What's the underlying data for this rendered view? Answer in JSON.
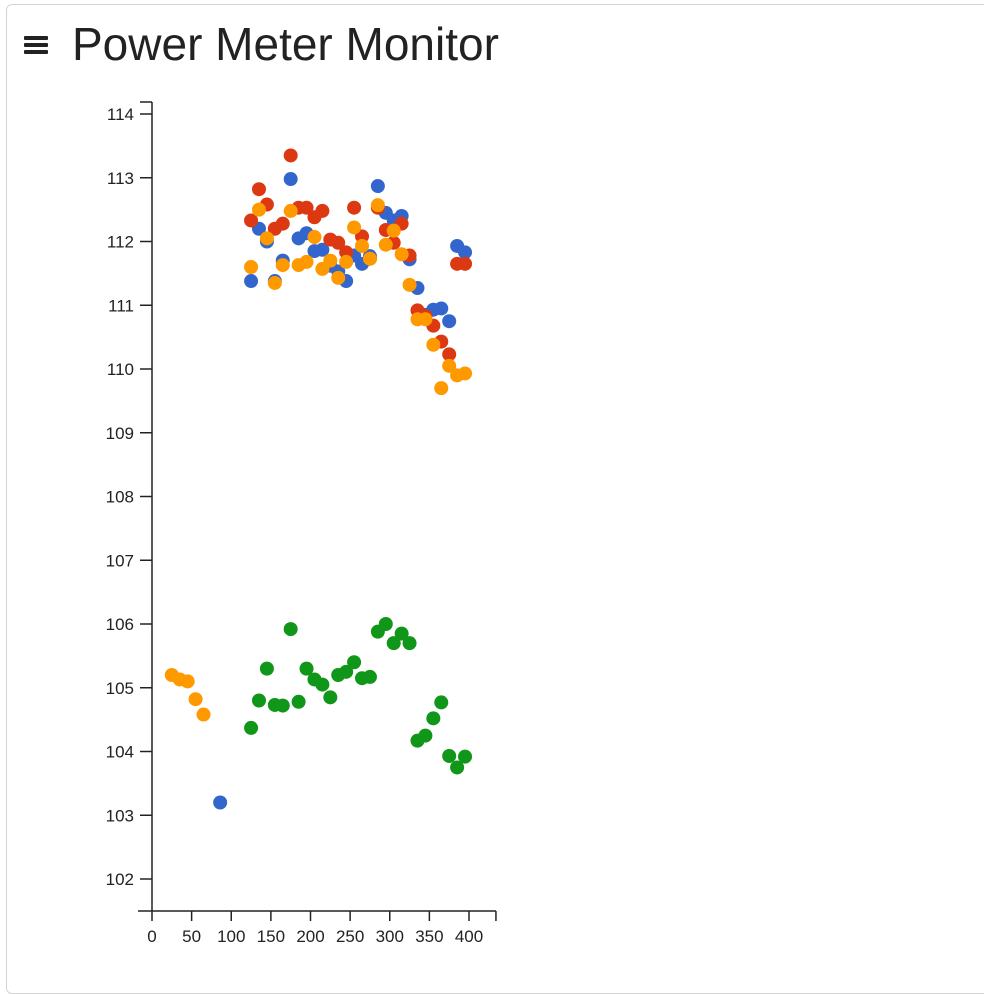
{
  "header": {
    "title": "Power Meter Monitor",
    "menu_icon": "hamburger-menu-icon"
  },
  "chart_data": {
    "type": "scatter",
    "title": "Power Meter Monitor",
    "xlabel": "",
    "ylabel": "",
    "xlim": [
      0,
      434
    ],
    "ylim": [
      101.5,
      114.2
    ],
    "x_ticks": [
      0,
      50,
      100,
      150,
      200,
      250,
      300,
      350,
      400
    ],
    "y_ticks": [
      102,
      103,
      104,
      105,
      106,
      107,
      108,
      109,
      110,
      111,
      112,
      113,
      114
    ],
    "grid": false,
    "legend": "none",
    "series": [
      {
        "color": "#3366cc",
        "points": [
          [
            86,
            103.2
          ],
          [
            125,
            111.38
          ],
          [
            135,
            112.2
          ],
          [
            145,
            112.0
          ],
          [
            155,
            111.38
          ],
          [
            165,
            111.7
          ],
          [
            175,
            112.98
          ],
          [
            185,
            112.05
          ],
          [
            195,
            112.13
          ],
          [
            205,
            111.85
          ],
          [
            215,
            111.87
          ],
          [
            225,
            111.62
          ],
          [
            235,
            111.53
          ],
          [
            245,
            111.38
          ],
          [
            255,
            111.78
          ],
          [
            265,
            111.65
          ],
          [
            275,
            111.77
          ],
          [
            285,
            112.87
          ],
          [
            295,
            112.45
          ],
          [
            305,
            112.33
          ],
          [
            315,
            112.4
          ],
          [
            325,
            111.72
          ],
          [
            335,
            111.27
          ],
          [
            345,
            110.85
          ],
          [
            355,
            110.93
          ],
          [
            365,
            110.95
          ],
          [
            375,
            110.75
          ],
          [
            385,
            111.93
          ],
          [
            395,
            111.83
          ]
        ]
      },
      {
        "color": "#dc3912",
        "points": [
          [
            125,
            112.33
          ],
          [
            135,
            112.82
          ],
          [
            145,
            112.58
          ],
          [
            155,
            112.2
          ],
          [
            165,
            112.28
          ],
          [
            175,
            113.35
          ],
          [
            185,
            112.53
          ],
          [
            195,
            112.53
          ],
          [
            205,
            112.38
          ],
          [
            215,
            112.48
          ],
          [
            225,
            112.03
          ],
          [
            235,
            111.98
          ],
          [
            245,
            111.83
          ],
          [
            255,
            112.53
          ],
          [
            265,
            112.08
          ],
          [
            275,
            111.73
          ],
          [
            285,
            112.53
          ],
          [
            295,
            112.18
          ],
          [
            305,
            111.98
          ],
          [
            315,
            112.28
          ],
          [
            325,
            111.78
          ],
          [
            335,
            110.92
          ],
          [
            345,
            110.83
          ],
          [
            355,
            110.68
          ],
          [
            365,
            110.43
          ],
          [
            375,
            110.23
          ],
          [
            385,
            111.65
          ],
          [
            395,
            111.65
          ]
        ]
      },
      {
        "color": "#ff9900",
        "points": [
          [
            25,
            105.2
          ],
          [
            35,
            105.13
          ],
          [
            45,
            105.1
          ],
          [
            55,
            104.82
          ],
          [
            65,
            104.58
          ],
          [
            125,
            111.6
          ],
          [
            135,
            112.5
          ],
          [
            145,
            112.05
          ],
          [
            155,
            111.35
          ],
          [
            165,
            111.63
          ],
          [
            175,
            112.48
          ],
          [
            185,
            111.63
          ],
          [
            195,
            111.68
          ],
          [
            205,
            112.07
          ],
          [
            215,
            111.57
          ],
          [
            225,
            111.7
          ],
          [
            235,
            111.43
          ],
          [
            245,
            111.68
          ],
          [
            255,
            112.22
          ],
          [
            265,
            111.93
          ],
          [
            275,
            111.73
          ],
          [
            285,
            112.57
          ],
          [
            295,
            111.95
          ],
          [
            305,
            112.17
          ],
          [
            315,
            111.8
          ],
          [
            325,
            111.32
          ],
          [
            335,
            110.78
          ],
          [
            345,
            110.78
          ],
          [
            355,
            110.38
          ],
          [
            365,
            109.7
          ],
          [
            375,
            110.05
          ],
          [
            385,
            109.9
          ],
          [
            395,
            109.93
          ]
        ]
      },
      {
        "color": "#109618",
        "points": [
          [
            125,
            104.37
          ],
          [
            135,
            104.8
          ],
          [
            145,
            105.3
          ],
          [
            155,
            104.73
          ],
          [
            165,
            104.72
          ],
          [
            175,
            105.92
          ],
          [
            185,
            104.78
          ],
          [
            195,
            105.3
          ],
          [
            205,
            105.13
          ],
          [
            215,
            105.05
          ],
          [
            225,
            104.85
          ],
          [
            235,
            105.2
          ],
          [
            245,
            105.25
          ],
          [
            255,
            105.4
          ],
          [
            265,
            105.15
          ],
          [
            275,
            105.17
          ],
          [
            285,
            105.88
          ],
          [
            295,
            106.0
          ],
          [
            305,
            105.7
          ],
          [
            315,
            105.85
          ],
          [
            325,
            105.7
          ],
          [
            335,
            104.17
          ],
          [
            345,
            104.25
          ],
          [
            355,
            104.52
          ],
          [
            365,
            104.77
          ],
          [
            375,
            103.93
          ],
          [
            385,
            103.75
          ],
          [
            395,
            103.92
          ]
        ]
      }
    ]
  }
}
